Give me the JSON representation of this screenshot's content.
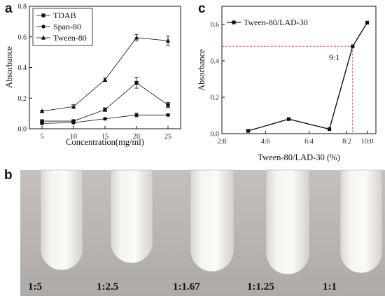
{
  "panels": {
    "a": "a",
    "b": "b",
    "c": "c"
  },
  "chart_data": [
    {
      "panel": "a",
      "type": "line",
      "xlabel": "Concentration(mg/ml)",
      "ylabel": "Absorbance",
      "x": [
        5,
        10,
        15,
        20,
        25
      ],
      "xlim": [
        3,
        27
      ],
      "ylim": [
        0,
        0.8
      ],
      "xticks": [
        5,
        10,
        15,
        20,
        25
      ],
      "yticks": [
        0.0,
        0.2,
        0.4,
        0.6,
        0.8
      ],
      "legend": "top-left",
      "grid": false,
      "series": [
        {
          "name": "TDAB",
          "marker": "square",
          "values": [
            0.05,
            0.05,
            0.125,
            0.3,
            0.155
          ],
          "errors": [
            0.006,
            0.006,
            0.012,
            0.035,
            0.017
          ]
        },
        {
          "name": "Span-80",
          "marker": "circle",
          "values": [
            0.035,
            0.04,
            0.065,
            0.09,
            0.09
          ],
          "errors": [
            0.004,
            0.004,
            0.005,
            0.012,
            0.006
          ]
        },
        {
          "name": "Tween-80",
          "marker": "triangle",
          "values": [
            0.115,
            0.145,
            0.32,
            0.595,
            0.575
          ],
          "errors": [
            0.006,
            0.012,
            0.012,
            0.02,
            0.03
          ]
        }
      ]
    },
    {
      "panel": "c",
      "type": "line",
      "xlabel": "Tween-80/LAD-30 (%)",
      "ylabel": "Absorbance",
      "x": [
        0.9,
        2.3,
        3.7,
        4.5,
        5.0
      ],
      "xlim": [
        0,
        5.3
      ],
      "ylim": [
        0,
        0.7
      ],
      "categories": [
        "2:8",
        "4:6",
        "6:4",
        "8:2",
        "10:0"
      ],
      "category_positions": [
        0,
        1.5,
        3,
        4.3,
        5
      ],
      "yticks": [
        0.0,
        0.2,
        0.4,
        0.6
      ],
      "legend": "top-left",
      "grid": false,
      "series": [
        {
          "name": "Tween-80/LAD-30",
          "marker": "square",
          "values": [
            0.015,
            0.08,
            0.025,
            0.48,
            0.61
          ]
        }
      ],
      "annotation": {
        "text": "9:1",
        "x": 4.5,
        "y": 0.48,
        "style": "red dashed guide lines"
      }
    }
  ],
  "photo_panel": {
    "labels": [
      "1:5",
      "1:2.5",
      "1:1.67",
      "1:1.25",
      "1:1"
    ]
  },
  "colors": {
    "line": "#111111",
    "guide": "#e8303a",
    "photo_bg": "#b9b5b3"
  }
}
